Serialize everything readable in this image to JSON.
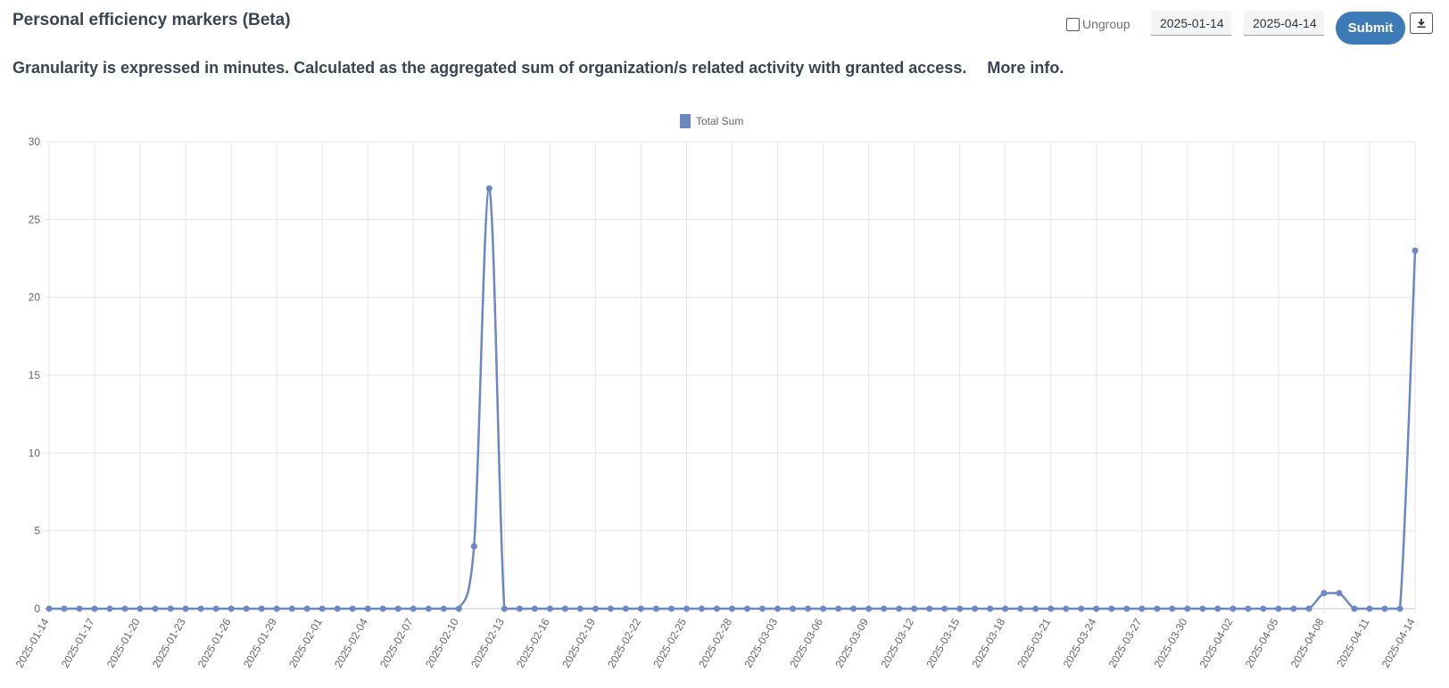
{
  "header": {
    "title": "Personal efficiency markers (Beta)",
    "subtitle": "Granularity is expressed in minutes. Calculated as the aggregated sum of organization/s related activity with granted access.",
    "more_info": "More info."
  },
  "toolbar": {
    "ungroup_label": "Ungroup",
    "ungroup_checked": false,
    "start_date": "2025-01-14",
    "end_date": "2025-04-14",
    "submit_label": "Submit",
    "download_icon": "download-icon"
  },
  "colors": {
    "series": "#6b88c2",
    "submit": "#3d7ab8",
    "grid": "#e6e6e6"
  },
  "chart_data": {
    "type": "line",
    "legend": [
      "Total Sum"
    ],
    "legend_position": "top-center",
    "ylim": [
      0,
      30
    ],
    "yticks": [
      0,
      5,
      10,
      15,
      20,
      25,
      30
    ],
    "grid": true,
    "x_start": "2025-01-14",
    "x_end": "2025-04-14",
    "tick_labels": [
      "2025-01-14",
      "2025-01-17",
      "2025-01-20",
      "2025-01-23",
      "2025-01-26",
      "2025-01-29",
      "2025-02-01",
      "2025-02-04",
      "2025-02-07",
      "2025-02-10",
      "2025-02-13",
      "2025-02-16",
      "2025-02-19",
      "2025-02-22",
      "2025-02-25",
      "2025-02-28",
      "2025-03-03",
      "2025-03-06",
      "2025-03-09",
      "2025-03-12",
      "2025-03-15",
      "2025-03-18",
      "2025-03-21",
      "2025-03-24",
      "2025-03-27",
      "2025-03-30",
      "2025-04-02",
      "2025-04-05",
      "2025-04-08",
      "2025-04-11",
      "2025-04-14"
    ],
    "series": [
      {
        "name": "Total Sum",
        "points": [
          {
            "x": "2025-02-11",
            "y": 4
          },
          {
            "x": "2025-02-12",
            "y": 27
          },
          {
            "x": "2025-04-08",
            "y": 1
          },
          {
            "x": "2025-04-09",
            "y": 1
          },
          {
            "x": "2025-04-14",
            "y": 23
          }
        ],
        "default_y": 0
      }
    ]
  }
}
